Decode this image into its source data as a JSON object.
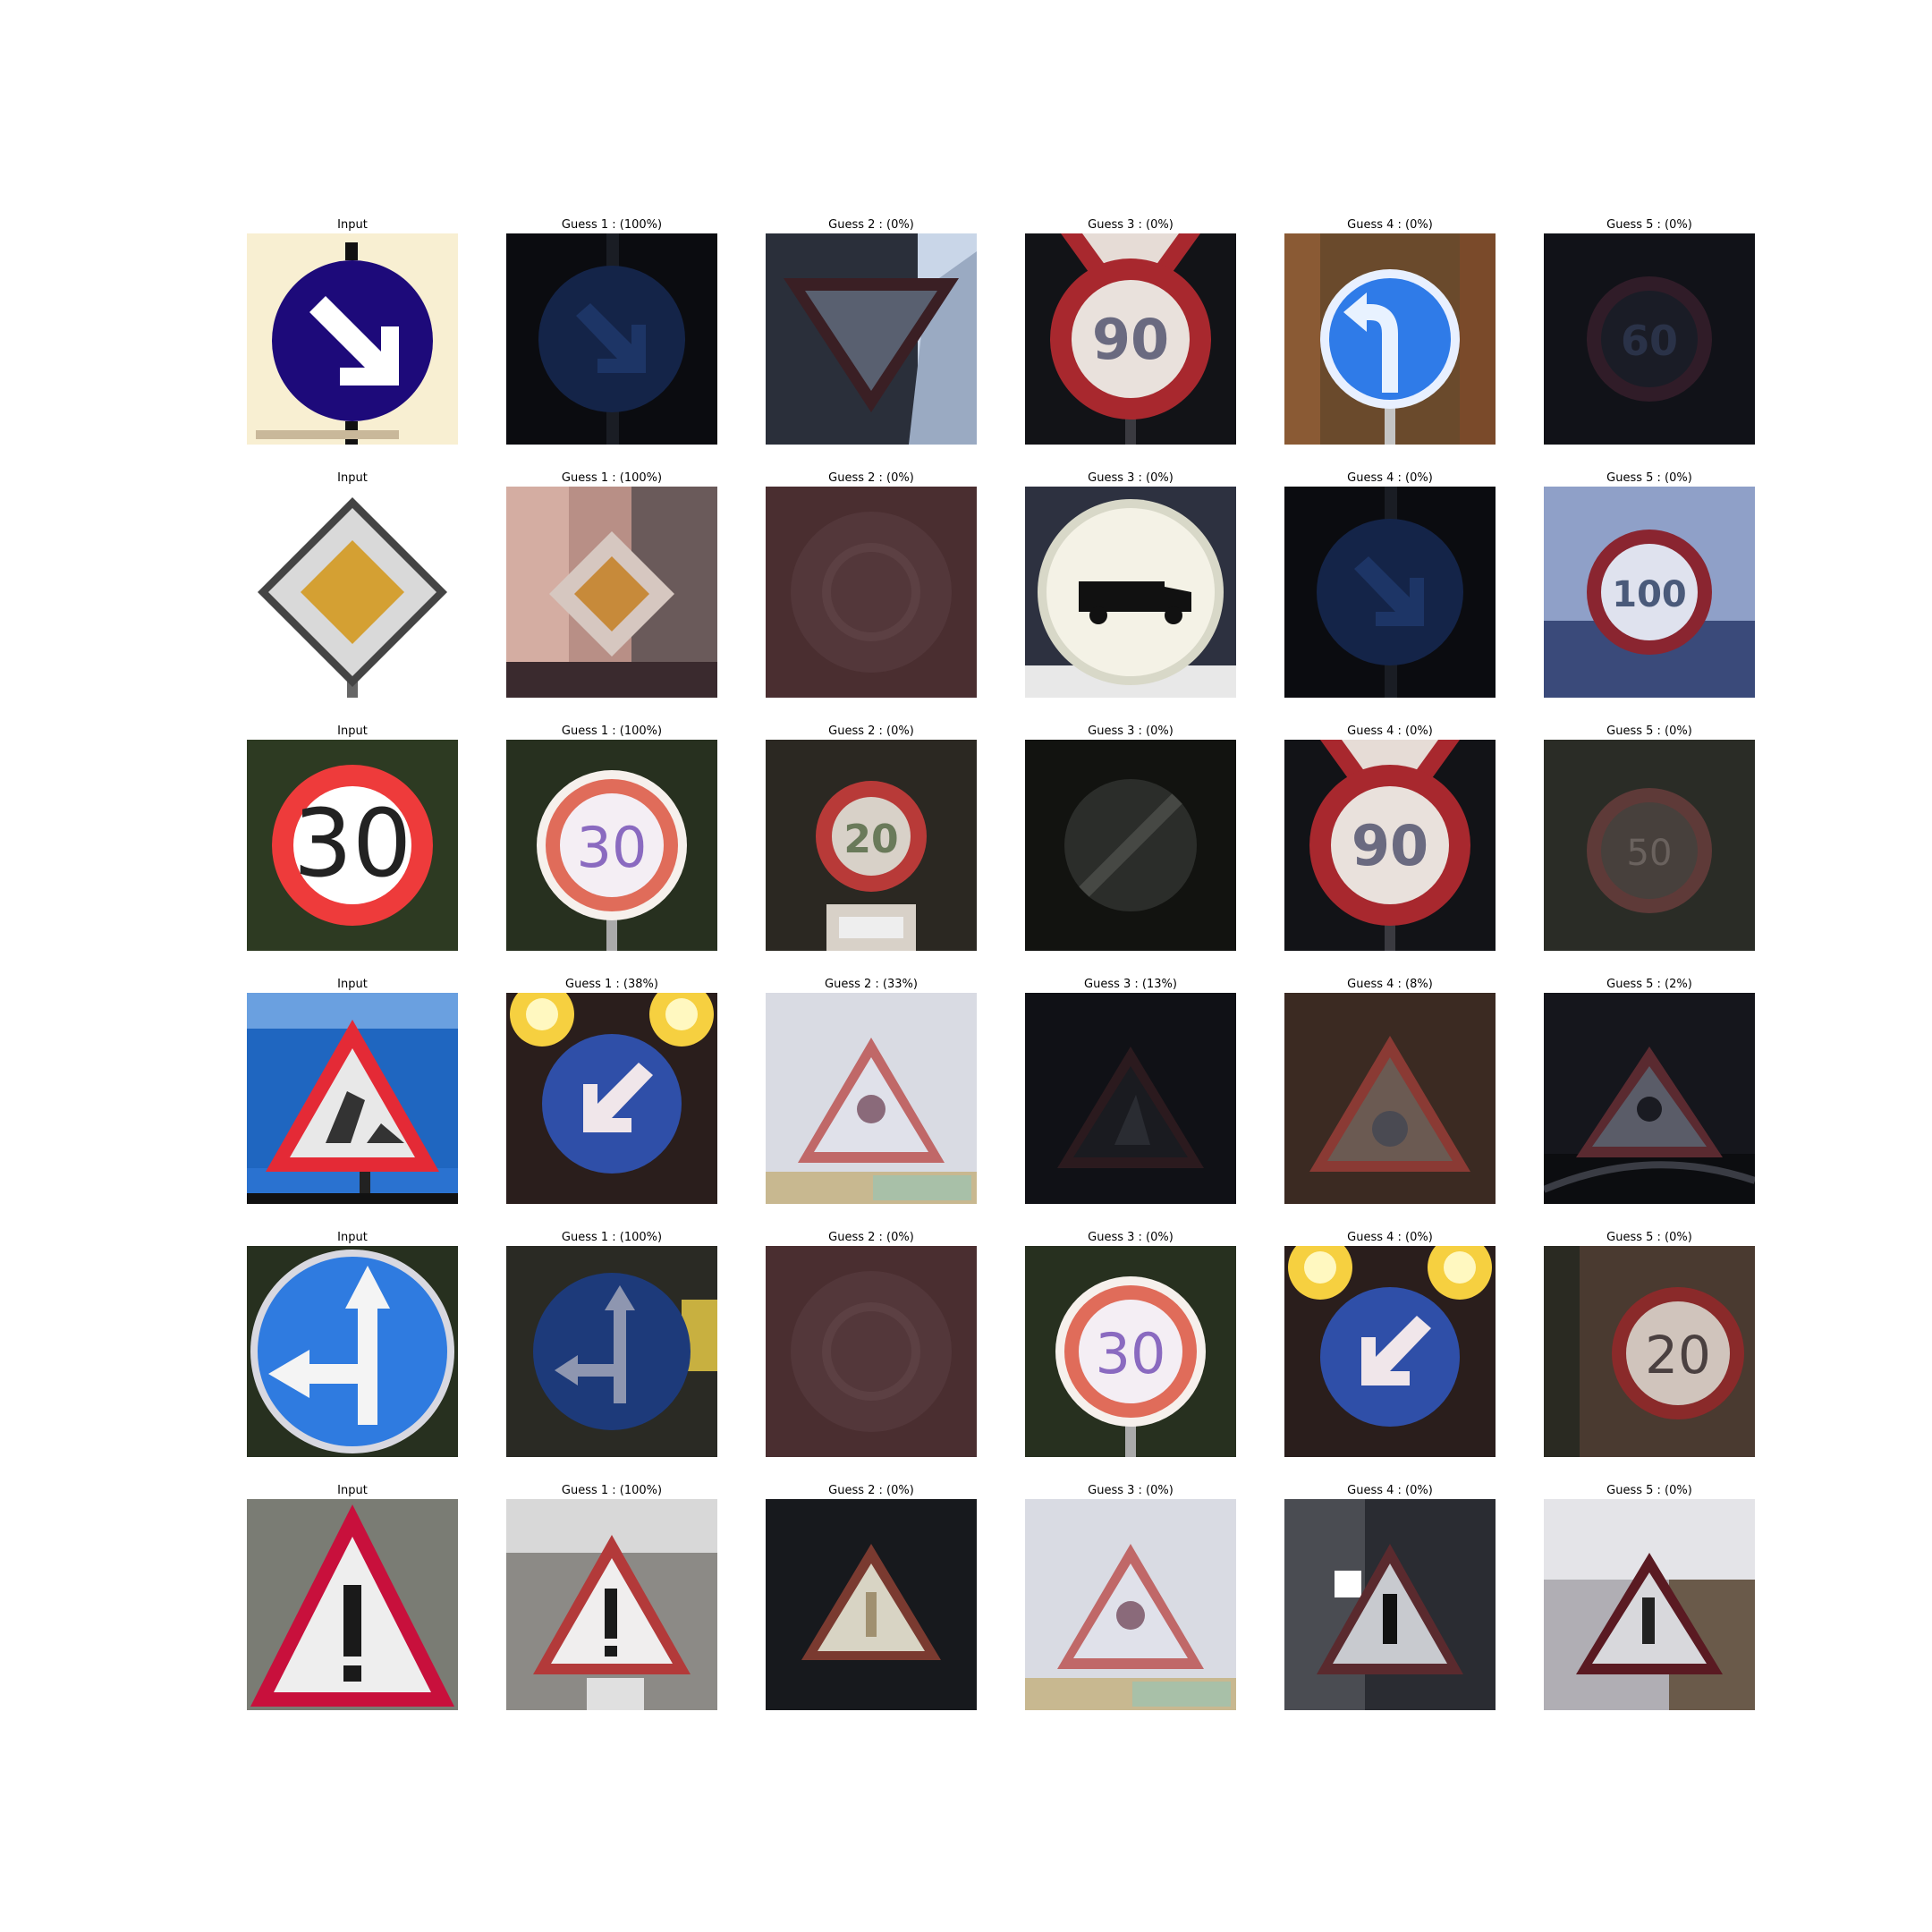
{
  "figure": {
    "rows": [
      {
        "input": {
          "label": "Input",
          "scene": "keep-right-arrow-sign-on-cream",
          "colors": {
            "bg": "#f8efd2",
            "sign": "#1d0a7a",
            "symbol": "#ffffff"
          }
        },
        "guesses": [
          {
            "label": "Guess 1 : (100%)",
            "probability": 100,
            "scene": "dark-blue-keep-right-sign",
            "colors": {
              "bg": "#0b0c10",
              "sign": "#142448",
              "symbol": "#1d3566"
            }
          },
          {
            "label": "Guess 2 : (0%)",
            "probability": 0,
            "scene": "yield-triangle-sign",
            "colors": {
              "bg": "#2a2f3a",
              "sign": "#596070",
              "symbol": "#3a1f24"
            }
          },
          {
            "label": "Guess 3 : (0%)",
            "probability": 0,
            "scene": "speed-limit-90-below-warning-triangle",
            "colors": {
              "bg": "#121317",
              "sign": "#e9e1dc",
              "symbol": "#a8282e"
            }
          },
          {
            "label": "Guess 4 : (0%)",
            "probability": 0,
            "scene": "turn-left-blue-sign-autumn-background",
            "colors": {
              "bg": "#6a4a2c",
              "sign": "#2f7be8",
              "symbol": "#e8f2ff"
            }
          },
          {
            "label": "Guess 5 : (0%)",
            "probability": 0,
            "scene": "very-dark-speed-limit-sign",
            "colors": {
              "bg": "#111218",
              "sign": "#1a1c26",
              "symbol": "#301c28"
            }
          }
        ]
      },
      {
        "input": {
          "label": "Input",
          "scene": "priority-road-diamond-sign",
          "colors": {
            "bg": "#ffffff",
            "sign": "#d9d9d9",
            "symbol": "#d4a033"
          }
        },
        "guesses": [
          {
            "label": "Guess 1 : (100%)",
            "probability": 100,
            "scene": "priority-road-sign-pink-wall",
            "colors": {
              "bg": "#b88f86",
              "sign": "#d6c7c0",
              "symbol": "#c78a3a"
            }
          },
          {
            "label": "Guess 2 : (0%)",
            "probability": 0,
            "scene": "dark-brown-roundabout-sign",
            "colors": {
              "bg": "#4a2e30",
              "sign": "#53373a",
              "symbol": "#5c4043"
            }
          },
          {
            "label": "Guess 3 : (0%)",
            "probability": 0,
            "scene": "no-trucks-white-sign",
            "colors": {
              "bg": "#2d3140",
              "sign": "#f4f2e6",
              "symbol": "#111111"
            }
          },
          {
            "label": "Guess 4 : (0%)",
            "probability": 0,
            "scene": "dark-blue-keep-right-sign",
            "colors": {
              "bg": "#0b0c10",
              "sign": "#142448",
              "symbol": "#1d3566"
            }
          },
          {
            "label": "Guess 5 : (0%)",
            "probability": 0,
            "scene": "speed-limit-100-blurry-sky",
            "colors": {
              "bg": "#8fa0c8",
              "sign": "#dfe2ee",
              "symbol": "#8a2530"
            }
          }
        ]
      },
      {
        "input": {
          "label": "Input",
          "scene": "speed-limit-30-sign",
          "colors": {
            "bg": "#2d3a22",
            "sign": "#ee3b3b",
            "symbol": "#ffffff"
          }
        },
        "guesses": [
          {
            "label": "Guess 1 : (100%)",
            "probability": 100,
            "scene": "speed-limit-30-tree-background",
            "colors": {
              "bg": "#27301f",
              "sign": "#e06c5a",
              "symbol": "#f4eef4"
            }
          },
          {
            "label": "Guess 2 : (0%)",
            "probability": 0,
            "scene": "speed-limit-sign-with-plate",
            "colors": {
              "bg": "#2b2822",
              "sign": "#b83a38",
              "symbol": "#d8d1c8"
            }
          },
          {
            "label": "Guess 3 : (0%)",
            "probability": 0,
            "scene": "end-of-restriction-dark-sign",
            "colors": {
              "bg": "#121310",
              "sign": "#2b2d2a",
              "symbol": "#464844"
            }
          },
          {
            "label": "Guess 4 : (0%)",
            "probability": 0,
            "scene": "speed-limit-90-below-warning-triangle",
            "colors": {
              "bg": "#121317",
              "sign": "#e9e1dc",
              "symbol": "#a8282e"
            }
          },
          {
            "label": "Guess 5 : (0%)",
            "probability": 0,
            "scene": "dark-speed-limit-sign",
            "colors": {
              "bg": "#2a2c26",
              "sign": "#47403c",
              "symbol": "#5e3a38"
            }
          }
        ]
      },
      {
        "input": {
          "label": "Input",
          "scene": "road-works-triangle-blue-sky",
          "colors": {
            "bg": "#1f66c0",
            "sign": "#e42a36",
            "symbol": "#e8e8e8"
          }
        },
        "guesses": [
          {
            "label": "Guess 1 : (38%)",
            "probability": 38,
            "scene": "keep-left-blue-sign-bright-lights",
            "colors": {
              "bg": "#2a1e1c",
              "sign": "#2f4fa8",
              "symbol": "#f0e6ea"
            }
          },
          {
            "label": "Guess 2 : (33%)",
            "probability": 33,
            "scene": "road-works-triangle-white-wall",
            "colors": {
              "bg": "#d9dbe3",
              "sign": "#e0e1ea",
              "symbol": "#c06868"
            }
          },
          {
            "label": "Guess 3 : (13%)",
            "probability": 13,
            "scene": "dark-warning-triangle",
            "colors": {
              "bg": "#101116",
              "sign": "#1a1b20",
              "symbol": "#2b1a1e"
            }
          },
          {
            "label": "Guess 4 : (8%)",
            "probability": 8,
            "scene": "warning-triangle-brown-background",
            "colors": {
              "bg": "#3b2a22",
              "sign": "#6b5a52",
              "symbol": "#8a3a34"
            }
          },
          {
            "label": "Guess 5 : (2%)",
            "probability": 2,
            "scene": "dark-warning-triangle-night",
            "colors": {
              "bg": "#15161c",
              "sign": "#5a5c68",
              "symbol": "#5a2a30"
            }
          }
        ]
      },
      {
        "input": {
          "label": "Input",
          "scene": "straight-or-left-blue-sign",
          "colors": {
            "bg": "#27301f",
            "sign": "#2f7be0",
            "symbol": "#f4f4f4"
          }
        },
        "guesses": [
          {
            "label": "Guess 1 : (100%)",
            "probability": 100,
            "scene": "straight-or-left-dark-blue-sign",
            "colors": {
              "bg": "#2a2a24",
              "sign": "#1d3a7a",
              "symbol": "#8e96b0"
            }
          },
          {
            "label": "Guess 2 : (0%)",
            "probability": 0,
            "scene": "dark-brown-roundabout-sign",
            "colors": {
              "bg": "#4a2e30",
              "sign": "#53373a",
              "symbol": "#5c4043"
            }
          },
          {
            "label": "Guess 3 : (0%)",
            "probability": 0,
            "scene": "speed-limit-30-tree-background",
            "colors": {
              "bg": "#27301f",
              "sign": "#e06c5a",
              "symbol": "#f4eef4"
            }
          },
          {
            "label": "Guess 4 : (0%)",
            "probability": 0,
            "scene": "keep-left-blue-sign-bright-lights",
            "colors": {
              "bg": "#2a1e1c",
              "sign": "#2f4fa8",
              "symbol": "#f0e6ea"
            }
          },
          {
            "label": "Guess 5 : (0%)",
            "probability": 0,
            "scene": "partial-speed-limit-20-sign",
            "colors": {
              "bg": "#4a3a30",
              "sign": "#d0c4bc",
              "symbol": "#8a2a2a"
            }
          }
        ]
      },
      {
        "input": {
          "label": "Input",
          "scene": "general-caution-exclamation-triangle",
          "colors": {
            "bg": "#7a7c74",
            "sign": "#c8103c",
            "symbol": "#1a1a1a"
          }
        },
        "guesses": [
          {
            "label": "Guess 1 : (100%)",
            "probability": 100,
            "scene": "general-caution-triangle-trees",
            "colors": {
              "bg": "#8c8a86",
              "sign": "#b33a3a",
              "symbol": "#1a1a1a"
            }
          },
          {
            "label": "Guess 2 : (0%)",
            "probability": 0,
            "scene": "pedestrian-triangle-dark-street",
            "colors": {
              "bg": "#17191d",
              "sign": "#7a3a30",
              "symbol": "#a09070"
            }
          },
          {
            "label": "Guess 3 : (0%)",
            "probability": 0,
            "scene": "road-works-triangle-white-wall",
            "colors": {
              "bg": "#d9dbe3",
              "sign": "#e0e1ea",
              "symbol": "#c06868"
            }
          },
          {
            "label": "Guess 4 : (0%)",
            "probability": 0,
            "scene": "pedestrian-triangle-grey-building",
            "colors": {
              "bg": "#2a2c32",
              "sign": "#5a2a2e",
              "symbol": "#111111"
            }
          },
          {
            "label": "Guess 5 : (0%)",
            "probability": 0,
            "scene": "pedestrian-triangle-building-wall",
            "colors": {
              "bg": "#6a5a4a",
              "sign": "#b0aeb4",
              "symbol": "#5a1a22"
            }
          }
        ]
      }
    ]
  }
}
